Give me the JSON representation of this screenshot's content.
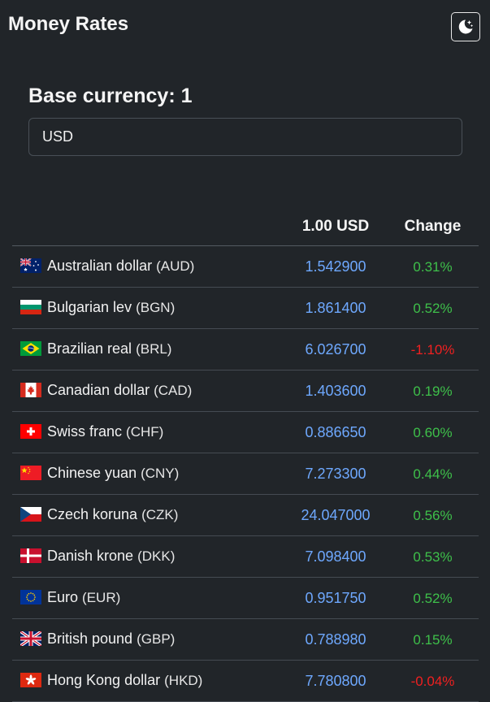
{
  "header": {
    "title": "Money Rates",
    "theme_icon": "moon-stars-icon"
  },
  "base": {
    "heading": "Base currency: 1",
    "input_value": "USD"
  },
  "table": {
    "col_amount": "1.00 USD",
    "col_change": "Change",
    "rows": [
      {
        "flag": "au",
        "name": "Australian dollar",
        "code": "(AUD)",
        "rate": "1.542900",
        "change": "0.31%",
        "direction": "up"
      },
      {
        "flag": "bg",
        "name": "Bulgarian lev",
        "code": "(BGN)",
        "rate": "1.861400",
        "change": "0.52%",
        "direction": "up"
      },
      {
        "flag": "br",
        "name": "Brazilian real",
        "code": "(BRL)",
        "rate": "6.026700",
        "change": "-1.10%",
        "direction": "down"
      },
      {
        "flag": "ca",
        "name": "Canadian dollar",
        "code": "(CAD)",
        "rate": "1.403600",
        "change": "0.19%",
        "direction": "up"
      },
      {
        "flag": "ch",
        "name": "Swiss franc",
        "code": "(CHF)",
        "rate": "0.886650",
        "change": "0.60%",
        "direction": "up"
      },
      {
        "flag": "cn",
        "name": "Chinese yuan",
        "code": "(CNY)",
        "rate": "7.273300",
        "change": "0.44%",
        "direction": "up"
      },
      {
        "flag": "cz",
        "name": "Czech koruna",
        "code": "(CZK)",
        "rate": "24.047000",
        "change": "0.56%",
        "direction": "up"
      },
      {
        "flag": "dk",
        "name": "Danish krone",
        "code": "(DKK)",
        "rate": "7.098400",
        "change": "0.53%",
        "direction": "up"
      },
      {
        "flag": "eu",
        "name": "Euro",
        "code": "(EUR)",
        "rate": "0.951750",
        "change": "0.52%",
        "direction": "up"
      },
      {
        "flag": "gb",
        "name": "British pound",
        "code": "(GBP)",
        "rate": "0.788980",
        "change": "0.15%",
        "direction": "up"
      },
      {
        "flag": "hk",
        "name": "Hong Kong dollar",
        "code": "(HKD)",
        "rate": "7.780800",
        "change": "-0.04%",
        "direction": "down"
      }
    ]
  },
  "colors": {
    "background": "#212529",
    "rate": "#6ea8fe",
    "positive": "#3ec04a",
    "negative": "#f02020"
  }
}
